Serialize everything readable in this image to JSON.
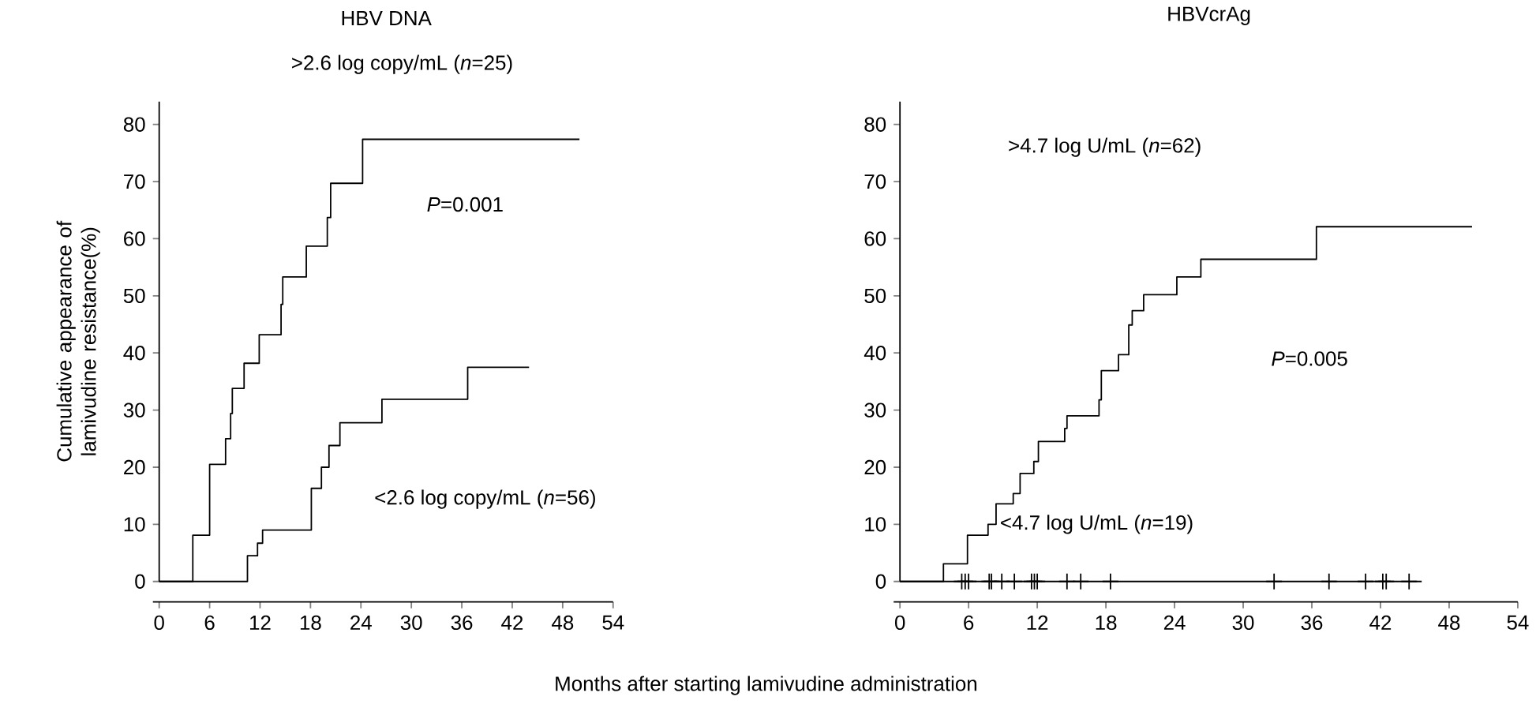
{
  "chart_data": [
    {
      "type": "step",
      "title": "HBV DNA",
      "ylabel": "Cumulative appearance of lamivudine resistance(%)",
      "xlabel": "Months after starting lamivudine administration",
      "xlim": [
        0,
        54
      ],
      "xticks": [
        0,
        6,
        12,
        18,
        24,
        30,
        36,
        42,
        48,
        54
      ],
      "ylim": [
        0,
        84
      ],
      "yticks": [
        0,
        10,
        20,
        30,
        40,
        50,
        60,
        70,
        80
      ],
      "grid": false,
      "series": [
        {
          "color": "#000000",
          "x": [
            0,
            4.0,
            6.0,
            7.9,
            8.5,
            8.7,
            10.1,
            11.9,
            14.5,
            14.7,
            17.5,
            20.0,
            20.4,
            24.2,
            50
          ],
          "values": [
            0,
            8.1,
            20.5,
            25,
            29.4,
            33.8,
            38.2,
            43.2,
            48.5,
            53.3,
            58.7,
            63.7,
            69.7,
            77.4,
            77.4
          ]
        },
        {
          "color": "#000000",
          "x": [
            0,
            10.5,
            11.7,
            12.3,
            18.1,
            19.3,
            20.2,
            21.5,
            26.5,
            36.7,
            44
          ],
          "values": [
            0,
            4.5,
            6.7,
            9.0,
            16.3,
            20.0,
            23.8,
            27.8,
            31.9,
            37.5,
            37.5
          ]
        }
      ],
      "annotations": [
        ">2.6 log copy/mL (*n*=25)",
        "*P*=0.001",
        "<2.6 log copy/mL (*n*=56)"
      ]
    },
    {
      "type": "step",
      "title": "HBVcrAg",
      "xlim": [
        0,
        54
      ],
      "xticks": [
        0,
        6,
        12,
        18,
        24,
        30,
        36,
        42,
        48,
        54
      ],
      "ylim": [
        0,
        84
      ],
      "yticks": [
        0,
        10,
        20,
        30,
        40,
        50,
        60,
        70,
        80
      ],
      "grid": false,
      "series": [
        {
          "color": "#000000",
          "x": [
            0,
            3.8,
            5.9,
            7.7,
            8.4,
            9.9,
            10.5,
            11.7,
            12.1,
            14.4,
            14.6,
            17.4,
            17.6,
            19.1,
            20.0,
            20.3,
            21.3,
            24.2,
            26.3,
            36.4,
            50
          ],
          "values": [
            0,
            3.1,
            8.1,
            10.0,
            13.6,
            15.4,
            18.9,
            21.0,
            24.5,
            26.8,
            29.0,
            31.8,
            36.9,
            39.7,
            44.9,
            47.4,
            50.2,
            53.3,
            56.4,
            62.1,
            62.1
          ]
        },
        {
          "color": "#000000",
          "x": [
            0,
            45.6
          ],
          "values": [
            0,
            0
          ]
        },
        {
          "type": "scatter",
          "marker": "cross",
          "color": "#000000",
          "x": [
            5.4,
            5.7,
            6.0,
            7.8,
            8.0,
            8.9,
            10.0,
            11.5,
            11.75,
            12.0,
            14.6,
            15.8,
            18.4,
            32.7,
            37.5,
            40.7,
            42.2,
            42.5,
            44.5
          ],
          "values": [
            0,
            0,
            0,
            0,
            0,
            0,
            0,
            0,
            0,
            0,
            0,
            0,
            0,
            0,
            0,
            0,
            0,
            0,
            0
          ]
        }
      ],
      "annotations": [
        ">4.7 log U/mL (*n*=62)",
        "*P*=0.005",
        "<4.7 log U/mL (*n*=19)"
      ]
    }
  ]
}
